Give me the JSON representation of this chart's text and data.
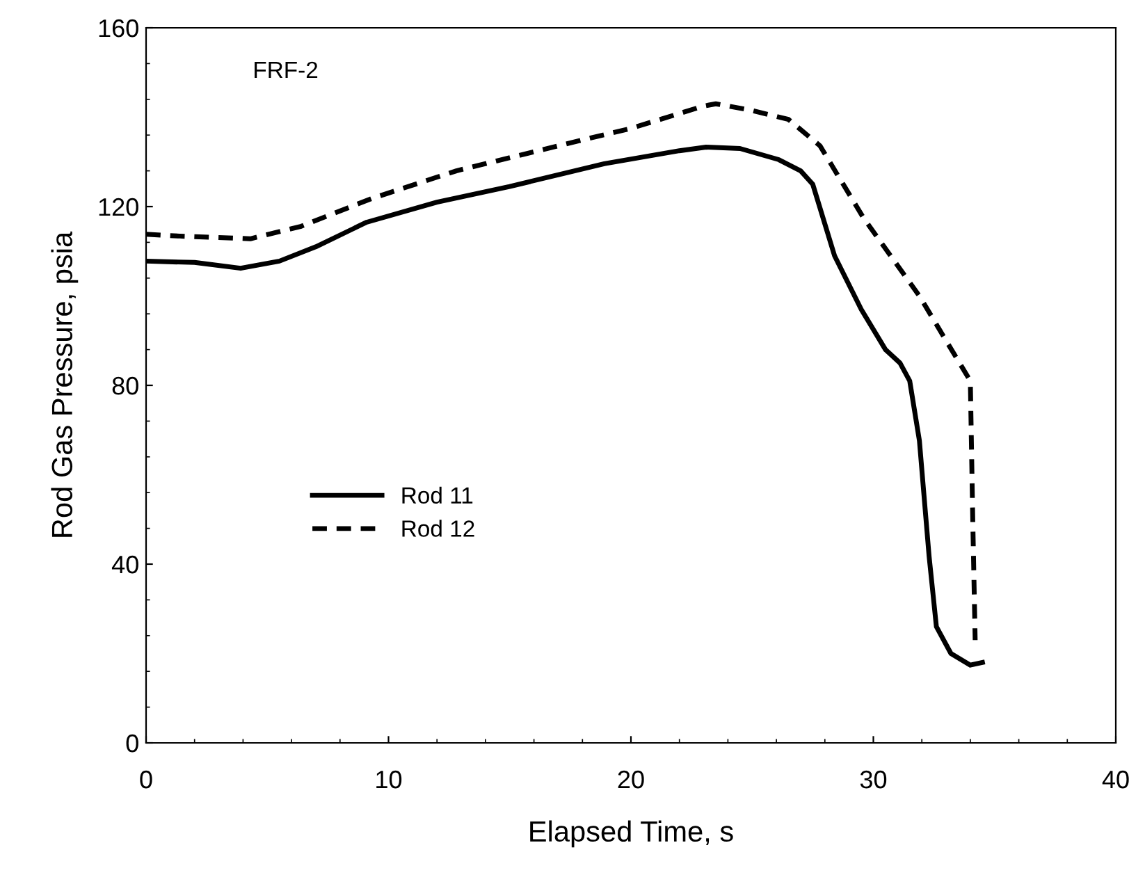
{
  "chart_data": {
    "type": "line",
    "xlabel": "Elapsed Time, s",
    "ylabel": "Rod Gas Pressure, psia",
    "annotations": [
      "FRF-2"
    ],
    "xlim": [
      0,
      40
    ],
    "xticks": [
      0,
      10,
      20,
      30,
      40
    ],
    "ylim": [
      0,
      160
    ],
    "yticks": [
      0,
      40,
      80,
      120,
      160
    ],
    "grid": false,
    "legend": "left",
    "marker": "none",
    "series": [
      {
        "name": "Rod 11",
        "color": "#000000",
        "line_style": "solid",
        "x": [
          0,
          2,
          3.9,
          5.5,
          7,
          9.1,
          12,
          15,
          18.9,
          22,
          23.1,
          24.5,
          26.1,
          27,
          27.5,
          28.4,
          29.5,
          30.5,
          31.1,
          31.5,
          31.9,
          32.3,
          32.6,
          33.2,
          34,
          34.5
        ],
        "values": [
          107.8,
          107.5,
          106.2,
          107.8,
          111,
          116.5,
          121,
          124.5,
          129.6,
          132.5,
          133.3,
          133,
          130.5,
          128,
          125,
          109,
          97,
          88,
          85,
          81,
          67.6,
          41.7,
          26,
          20,
          17.4,
          18
        ]
      },
      {
        "name": "Rod 12",
        "color": "#000000",
        "line_style": "dashed",
        "x": [
          0,
          1.4,
          4.3,
          6.4,
          9.3,
          12.8,
          17,
          20,
          23,
          23.5,
          25,
          26.5,
          27.8,
          29.6,
          31.9,
          33,
          34,
          34.1,
          34.2
        ],
        "values": [
          113.8,
          113.4,
          112.8,
          115.6,
          121.8,
          128,
          133.6,
          137.5,
          142.5,
          143,
          141.5,
          139.5,
          133.6,
          117.4,
          100,
          90,
          81,
          50,
          23
        ]
      }
    ]
  }
}
